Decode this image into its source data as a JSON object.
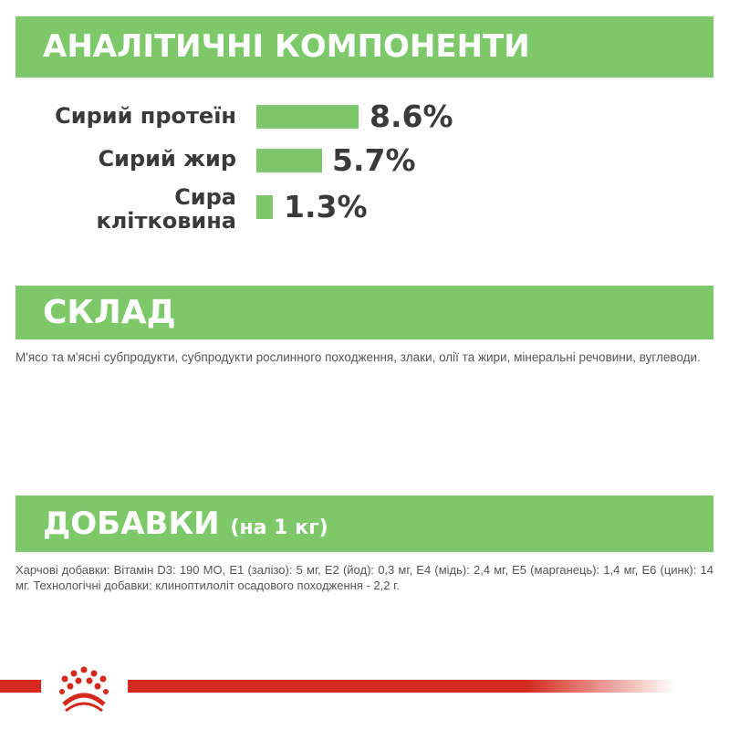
{
  "analytics": {
    "title": "АНАЛІТИЧНІ КОМПОНЕНТИ",
    "items": [
      {
        "label": "Сирий протеїн",
        "value": "8.6%",
        "percent": 8.6
      },
      {
        "label": "Сирий жир",
        "value": "5.7%",
        "percent": 5.7
      },
      {
        "label": "Сира клітковина",
        "value": "1.3%",
        "percent": 1.3
      }
    ]
  },
  "composition": {
    "title": "СКЛАД",
    "text": "М'ясо та м'ясні субпродукти, субпродукти рослинного походження, злаки, олії та жири, мінеральні речовини, вуглеводи."
  },
  "additives": {
    "title": "ДОБАВКИ",
    "subtitle": "(на 1 кг)",
    "text": "Харчові добавки: Вітамін D3: 190 МО, E1 (залізо): 5 мг, E2 (йод): 0,3 мг, E4 (мідь): 2,4 мг, E5 (марганець): 1,4 мг, E6 (цинк): 14 мг. Технологічні добавки: клиноптилоліт осадового походження - 2,2 г."
  },
  "brand": {
    "logo": "Royal Canin crown",
    "accent": "#d42a1e",
    "green": "#7dc96a"
  }
}
